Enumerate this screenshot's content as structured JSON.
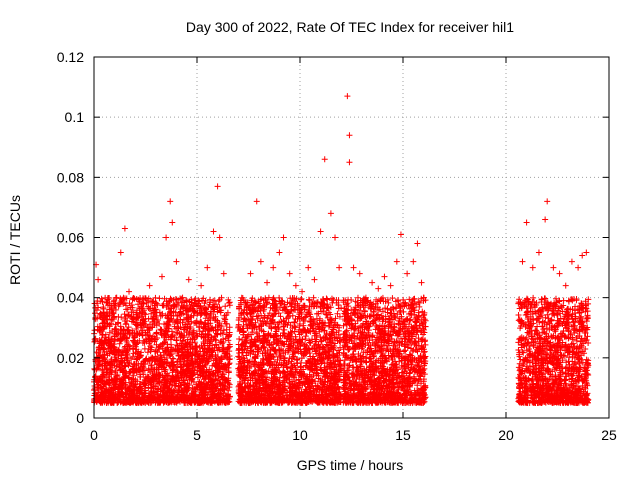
{
  "chart_data": {
    "type": "scatter",
    "title": "Day 300 of 2022, Rate Of TEC Index for receiver hil1",
    "xlabel": "GPS time / hours",
    "ylabel": "ROTI / TECUs",
    "xlim": [
      0,
      25
    ],
    "ylim": [
      0,
      0.12
    ],
    "xticks": [
      0,
      5,
      10,
      15,
      20,
      25
    ],
    "yticks": [
      0,
      0.02,
      0.04,
      0.06,
      0.08,
      0.1,
      0.12
    ],
    "xtick_labels": [
      "0",
      "5",
      "10",
      "15",
      "20",
      "25"
    ],
    "ytick_labels": [
      "0",
      "0.02",
      "0.04",
      "0.06",
      "0.08",
      "0.1",
      "0.12"
    ],
    "grid": true,
    "marker": "+",
    "color": "#ff0000",
    "series": [
      {
        "name": "ROTI",
        "points": [
          [
            0.0,
            0.012
          ],
          [
            0.1,
            0.051
          ],
          [
            0.2,
            0.046
          ],
          [
            0.3,
            0.03
          ],
          [
            0.5,
            0.022
          ],
          [
            0.7,
            0.026
          ],
          [
            0.9,
            0.035
          ],
          [
            1.1,
            0.04
          ],
          [
            1.3,
            0.055
          ],
          [
            1.5,
            0.063
          ],
          [
            1.7,
            0.042
          ],
          [
            1.9,
            0.033
          ],
          [
            2.1,
            0.028
          ],
          [
            2.4,
            0.038
          ],
          [
            2.7,
            0.044
          ],
          [
            3.0,
            0.036
          ],
          [
            3.3,
            0.047
          ],
          [
            3.5,
            0.06
          ],
          [
            3.7,
            0.072
          ],
          [
            3.8,
            0.065
          ],
          [
            4.0,
            0.052
          ],
          [
            4.3,
            0.04
          ],
          [
            4.6,
            0.046
          ],
          [
            4.9,
            0.038
          ],
          [
            5.2,
            0.044
          ],
          [
            5.5,
            0.05
          ],
          [
            5.8,
            0.062
          ],
          [
            6.0,
            0.077
          ],
          [
            6.1,
            0.06
          ],
          [
            6.3,
            0.048
          ],
          [
            6.5,
            0.035
          ],
          [
            7.0,
            0.03
          ],
          [
            7.3,
            0.036
          ],
          [
            7.6,
            0.048
          ],
          [
            7.9,
            0.072
          ],
          [
            8.1,
            0.052
          ],
          [
            8.4,
            0.045
          ],
          [
            8.7,
            0.05
          ],
          [
            9.0,
            0.055
          ],
          [
            9.2,
            0.06
          ],
          [
            9.5,
            0.048
          ],
          [
            9.8,
            0.044
          ],
          [
            10.1,
            0.042
          ],
          [
            10.4,
            0.05
          ],
          [
            10.7,
            0.046
          ],
          [
            11.0,
            0.062
          ],
          [
            11.2,
            0.086
          ],
          [
            11.5,
            0.068
          ],
          [
            11.7,
            0.06
          ],
          [
            11.9,
            0.05
          ],
          [
            12.3,
            0.107
          ],
          [
            12.4,
            0.094
          ],
          [
            12.4,
            0.085
          ],
          [
            12.6,
            0.05
          ],
          [
            12.9,
            0.048
          ],
          [
            13.2,
            0.04
          ],
          [
            13.5,
            0.045
          ],
          [
            13.8,
            0.043
          ],
          [
            14.1,
            0.047
          ],
          [
            14.4,
            0.044
          ],
          [
            14.7,
            0.052
          ],
          [
            14.9,
            0.061
          ],
          [
            15.2,
            0.048
          ],
          [
            15.5,
            0.052
          ],
          [
            15.7,
            0.058
          ],
          [
            15.9,
            0.045
          ],
          [
            16.0,
            0.04
          ],
          [
            20.6,
            0.038
          ],
          [
            20.8,
            0.052
          ],
          [
            21.0,
            0.065
          ],
          [
            21.3,
            0.05
          ],
          [
            21.6,
            0.055
          ],
          [
            21.9,
            0.066
          ],
          [
            22.0,
            0.072
          ],
          [
            22.3,
            0.05
          ],
          [
            22.6,
            0.048
          ],
          [
            22.9,
            0.044
          ],
          [
            23.2,
            0.052
          ],
          [
            23.5,
            0.05
          ],
          [
            23.7,
            0.054
          ],
          [
            23.9,
            0.055
          ]
        ],
        "envelope": {
          "segments": [
            [
              0,
              6.6
            ],
            [
              7.0,
              12.0
            ],
            [
              12.1,
              16.1
            ],
            [
              20.6,
              24.0
            ]
          ],
          "dense_band": [
            0.005,
            0.04
          ]
        }
      }
    ]
  }
}
